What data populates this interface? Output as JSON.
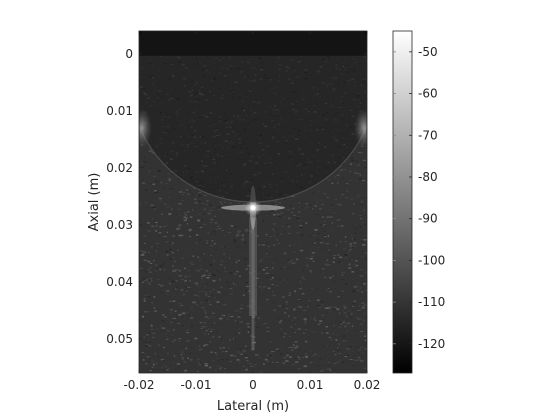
{
  "chart_data": {
    "type": "heatmap",
    "title": "",
    "xlabel": "Lateral (m)",
    "ylabel": "Axial (m)",
    "xlim": [
      -0.02,
      0.02
    ],
    "ylim": [
      -0.004,
      0.056
    ],
    "x_ticks": [
      -0.02,
      -0.01,
      0,
      0.01,
      0.02
    ],
    "x_tick_labels": [
      "-0.02",
      "-0.01",
      "0",
      "0.01",
      "0.02"
    ],
    "y_ticks": [
      0,
      0.01,
      0.02,
      0.03,
      0.04,
      0.05
    ],
    "y_tick_labels": [
      "0",
      "0.01",
      "0.02",
      "0.03",
      "0.04",
      "0.05"
    ],
    "y_direction": "reversed",
    "colormap": "gray",
    "color_range": [
      -127,
      -45
    ],
    "colorbar_ticks": [
      -50,
      -60,
      -70,
      -80,
      -90,
      -100,
      -110,
      -120
    ],
    "colorbar_tick_labels": [
      "-50",
      "-60",
      "-70",
      "-80",
      "-90",
      "-100",
      "-110",
      "-120"
    ],
    "features": [
      {
        "kind": "point-target",
        "x": 0,
        "y": 0.027,
        "level": -45
      },
      {
        "kind": "curved-boundary",
        "center": [
          0,
          0.005
        ],
        "radius": 0.021
      },
      {
        "kind": "bright-side-spot",
        "x": -0.0195,
        "y": 0.013
      },
      {
        "kind": "bright-side-spot",
        "x": 0.0195,
        "y": 0.013
      }
    ]
  },
  "colors": {
    "axis": "#262626",
    "background": "#ffffff",
    "colormap_low": "#000000",
    "colormap_high": "#ffffff"
  }
}
